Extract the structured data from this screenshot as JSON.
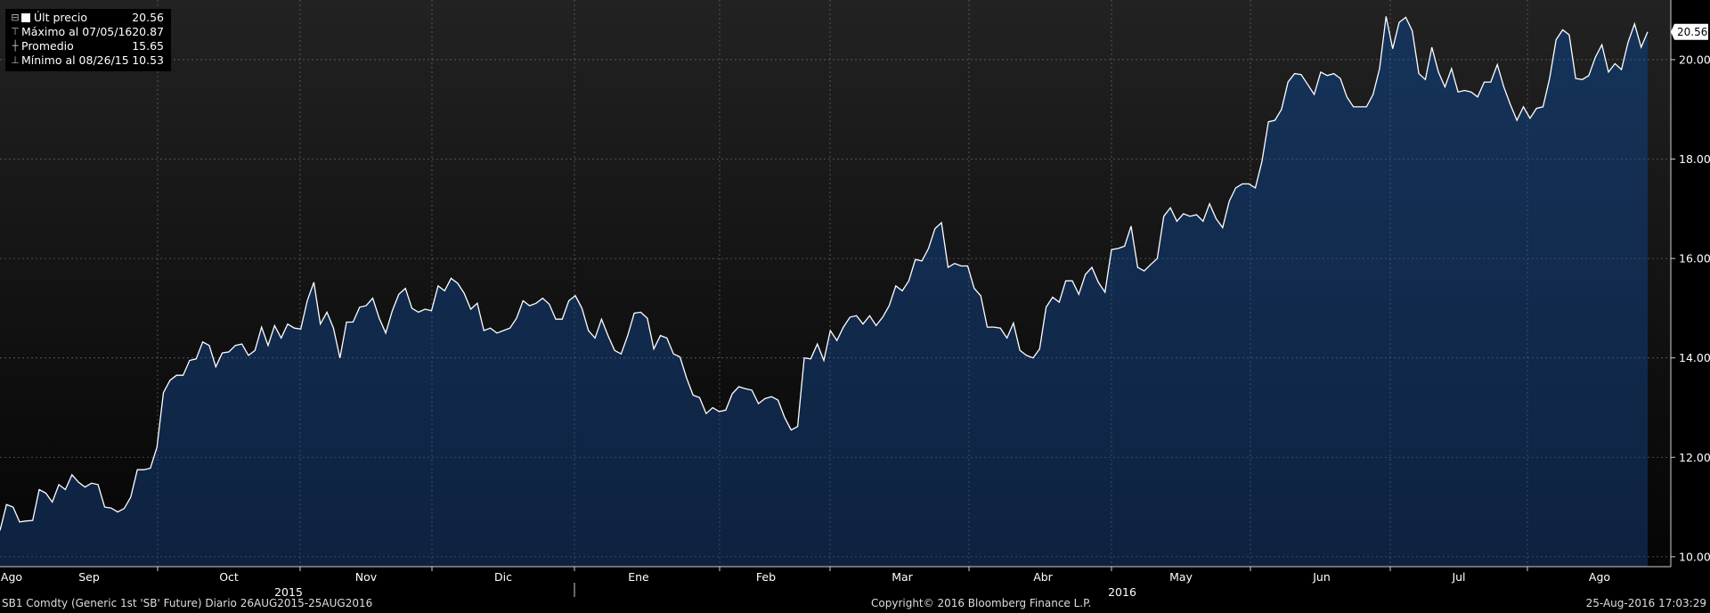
{
  "legend": {
    "last": {
      "label": "Últ precio",
      "value": "20.56"
    },
    "max": {
      "label": "Máximo al 07/05/16",
      "value": "20.87"
    },
    "avg": {
      "label": "Promedio",
      "value": "15.65"
    },
    "min": {
      "label": "Mínimo al 08/26/15",
      "value": "10.53"
    }
  },
  "last_price_tag": "20.56",
  "footer": {
    "left": "SB1 Comdty (Generic 1st 'SB' Future)  Diario 26AUG2015-25AUG2016",
    "center": "Copyright© 2016 Bloomberg Finance L.P.",
    "right": "25-Aug-2016 17:03:29"
  },
  "colors": {
    "background": "#000000",
    "plot_top": "#1c1c1c",
    "area_fill_top": "#15335a",
    "area_fill_bottom": "#0e2240",
    "line": "#ffffff",
    "grid": "#6a6a6a"
  },
  "chart_data": {
    "type": "area",
    "title": "",
    "xlabel": "",
    "ylabel": "",
    "ylim": [
      9.8,
      21.2
    ],
    "y_ticks": [
      "10.00",
      "12.00",
      "14.00",
      "16.00",
      "18.00",
      "20.00"
    ],
    "x_tick_labels": [
      "Ago",
      "Sep",
      "Oct",
      "Nov",
      "Dic",
      "Ene",
      "Feb",
      "Mar",
      "Abr",
      "May",
      "Jun",
      "Jul",
      "Ago"
    ],
    "year_labels": [
      "2015",
      "2016"
    ],
    "grid": true,
    "series": [
      {
        "x_start": "2015-08-26",
        "x_end": "2016-08-25",
        "values": [
          10.53,
          11.05,
          11.0,
          10.7,
          10.72,
          10.73,
          11.35,
          11.28,
          11.1,
          11.45,
          11.35,
          11.65,
          11.5,
          11.4,
          11.48,
          11.45,
          11.0,
          10.98,
          10.9,
          10.97,
          11.2,
          11.75,
          11.75,
          11.78,
          12.2,
          13.3,
          13.55,
          13.65,
          13.65,
          13.95,
          13.98,
          14.32,
          14.25,
          13.82,
          14.1,
          14.12,
          14.25,
          14.28,
          14.05,
          14.15,
          14.62,
          14.25,
          14.65,
          14.4,
          14.68,
          14.6,
          14.58,
          15.15,
          15.52,
          14.68,
          14.92,
          14.6,
          14.0,
          14.72,
          14.72,
          15.02,
          15.05,
          15.2,
          14.8,
          14.5,
          14.95,
          15.28,
          15.4,
          15.0,
          14.92,
          14.98,
          14.95,
          15.45,
          15.35,
          15.6,
          15.5,
          15.3,
          14.98,
          15.1,
          14.55,
          14.6,
          14.5,
          14.55,
          14.6,
          14.8,
          15.15,
          15.05,
          15.1,
          15.2,
          15.08,
          14.78,
          14.78,
          15.15,
          15.25,
          15.0,
          14.55,
          14.4,
          14.78,
          14.45,
          14.15,
          14.08,
          14.45,
          14.9,
          14.92,
          14.8,
          14.18,
          14.45,
          14.4,
          14.08,
          14.02,
          13.6,
          13.25,
          13.2,
          12.88,
          13.0,
          12.92,
          12.95,
          13.28,
          13.42,
          13.38,
          13.35,
          13.08,
          13.18,
          13.22,
          13.15,
          12.8,
          12.55,
          12.62,
          14.0,
          13.98,
          14.28,
          13.95,
          14.55,
          14.35,
          14.62,
          14.82,
          14.85,
          14.68,
          14.85,
          14.65,
          14.82,
          15.05,
          15.45,
          15.35,
          15.55,
          15.98,
          15.95,
          16.2,
          16.6,
          16.72,
          15.82,
          15.9,
          15.85,
          15.85,
          15.4,
          15.25,
          14.62,
          14.62,
          14.6,
          14.4,
          14.7,
          14.15,
          14.05,
          14.0,
          14.18,
          15.02,
          15.22,
          15.12,
          15.55,
          15.55,
          15.28,
          15.68,
          15.82,
          15.52,
          15.32,
          16.18,
          16.2,
          16.25,
          16.65,
          15.82,
          15.75,
          15.88,
          16.0,
          16.85,
          17.02,
          16.75,
          16.9,
          16.85,
          16.88,
          16.75,
          17.1,
          16.8,
          16.62,
          17.15,
          17.42,
          17.5,
          17.5,
          17.42,
          17.95,
          18.75,
          18.78,
          19.0,
          19.55,
          19.72,
          19.7,
          19.5,
          19.3,
          19.75,
          19.68,
          19.72,
          19.62,
          19.25,
          19.05,
          19.05,
          19.05,
          19.3,
          19.82,
          20.87,
          20.22,
          20.75,
          20.85,
          20.58,
          19.72,
          19.6,
          20.25,
          19.75,
          19.45,
          19.82,
          19.35,
          19.38,
          19.35,
          19.25,
          19.55,
          19.55,
          19.9,
          19.45,
          19.1,
          18.78,
          19.05,
          18.82,
          19.02,
          19.05,
          19.62,
          20.4,
          20.6,
          20.5,
          19.62,
          19.6,
          19.68,
          20.05,
          20.3,
          19.75,
          19.92,
          19.8,
          20.35,
          20.72,
          20.25,
          20.56
        ]
      }
    ]
  }
}
